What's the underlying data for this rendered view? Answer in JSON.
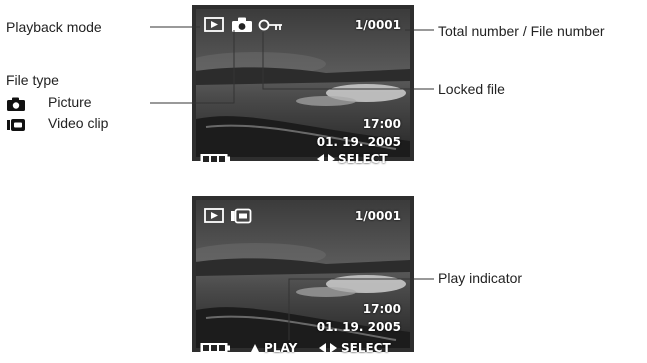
{
  "callouts": {
    "playback_mode": "Playback mode",
    "file_type": "File type",
    "picture": "Picture",
    "video_clip": "Video clip",
    "total_file_number": "Total number / File number",
    "locked_file": "Locked file",
    "play_indicator": "Play indicator"
  },
  "screen1": {
    "counter": "1/0001",
    "time": "17:00",
    "date": "01. 19. 2005",
    "select": "SELECT"
  },
  "screen2": {
    "counter": "1/0001",
    "time": "17:00",
    "date": "01. 19. 2005",
    "play": "PLAY",
    "select": "SELECT"
  },
  "colors": {
    "screen_border": "#2e2e2e",
    "osd_text": "#ffffff",
    "leader_line": "#333333"
  },
  "icons": [
    "playback-icon",
    "camera-icon",
    "lock-key-icon",
    "video-icon",
    "battery-icon",
    "left-right-arrow-icon",
    "play-triangle-icon"
  ]
}
